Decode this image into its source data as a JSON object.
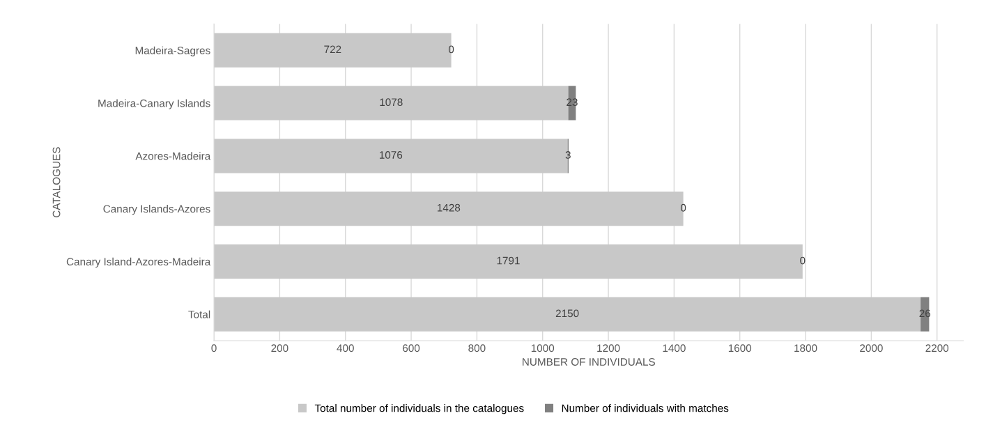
{
  "chart_data": {
    "type": "bar",
    "orientation": "horizontal",
    "stacked": true,
    "xlabel": "NUMBER OF INDIVIDUALS",
    "ylabel": "CATALOGUES",
    "categories": [
      "Madeira-Sagres",
      "Madeira-Canary Islands",
      "Azores-Madeira",
      "Canary Islands-Azores",
      "Canary Island-Azores-Madeira",
      "Total"
    ],
    "series": [
      {
        "name": "Total number of individuals in the catalogues",
        "color": "#c8c8c8",
        "values": [
          722,
          1078,
          1076,
          1428,
          1791,
          2150
        ]
      },
      {
        "name": "Number of individuals with matches",
        "color": "#808080",
        "values": [
          0,
          23,
          3,
          0,
          0,
          26
        ]
      }
    ],
    "xlim": [
      0,
      2280
    ],
    "xticks": [
      0,
      200,
      400,
      600,
      800,
      1000,
      1200,
      1400,
      1600,
      1800,
      2000,
      2200
    ],
    "grid": "x",
    "legend": "bottom",
    "data_labels": true
  }
}
